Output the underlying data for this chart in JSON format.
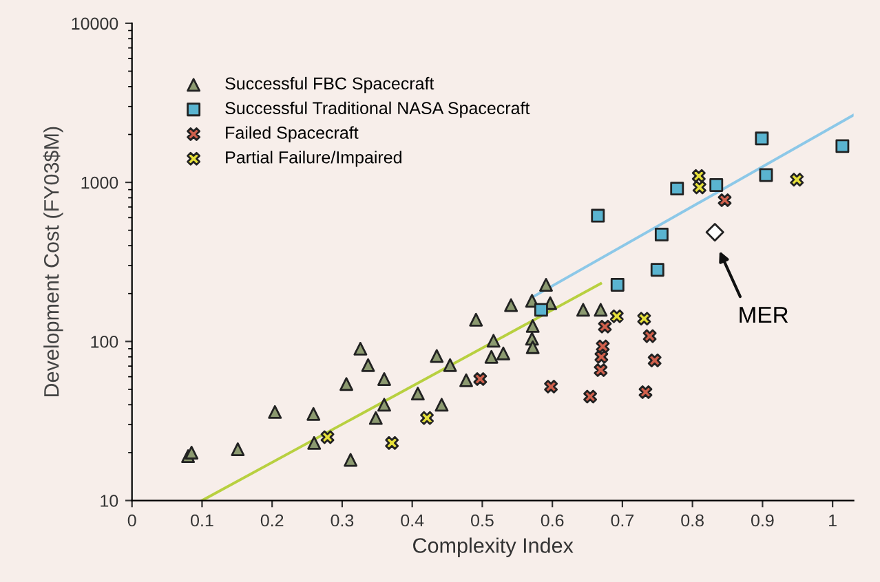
{
  "chart_data": {
    "type": "scatter",
    "xlabel": "Complexity Index",
    "ylabel": "Development Cost (FY03$M)",
    "log": "y",
    "xlim": [
      0,
      1.03
    ],
    "ylim": [
      10,
      10000
    ],
    "xticks": [
      0,
      0.1,
      0.2,
      0.3,
      0.4,
      0.5,
      0.6,
      0.7,
      0.8,
      0.9,
      1
    ],
    "yticks": [
      10,
      100,
      1000,
      10000
    ],
    "grid": false,
    "legend": "top left",
    "series": [
      {
        "name": "Successful FBC Spacecraft",
        "color": "#8c9a70",
        "marker": "triangle",
        "x": [
          0.08,
          0.085,
          0.151,
          0.204,
          0.259,
          0.26,
          0.312,
          0.306,
          0.326,
          0.337,
          0.36,
          0.36,
          0.348,
          0.408,
          0.442,
          0.435,
          0.454,
          0.477,
          0.491,
          0.513,
          0.53,
          0.516,
          0.541,
          0.571,
          0.597,
          0.591,
          0.572,
          0.571,
          0.572,
          0.644,
          0.669
        ],
        "values": [
          19,
          20,
          21,
          36,
          35,
          23,
          18,
          54,
          90,
          71,
          58,
          40,
          33,
          47,
          40,
          81,
          71,
          57,
          137,
          80,
          84,
          101,
          169,
          180,
          174,
          227,
          125,
          104,
          92,
          158,
          158
        ]
      },
      {
        "name": "Successful Traditional NASA Spacecraft",
        "color": "#5ab4d0",
        "marker": "square",
        "x": [
          0.584,
          0.693,
          0.75,
          0.756,
          0.665,
          0.778,
          0.834,
          0.905,
          0.899,
          1.014
        ],
        "values": [
          158,
          227,
          282,
          470,
          617,
          914,
          962,
          1111,
          1887,
          1690
        ]
      },
      {
        "name": "Failed Spacecraft",
        "color": "#d0604c",
        "marker": "cross",
        "x": [
          0.846,
          0.675,
          0.672,
          0.67,
          0.669,
          0.739,
          0.746,
          0.733,
          0.654,
          0.598,
          0.497
        ],
        "values": [
          773,
          124,
          93,
          80,
          66,
          108,
          76,
          48,
          45,
          52,
          58
        ]
      },
      {
        "name": "Partial Failure/Impaired",
        "color": "#e6e03a",
        "marker": "cross",
        "x": [
          0.809,
          0.81,
          0.949,
          0.692,
          0.731,
          0.279,
          0.371,
          0.421
        ],
        "values": [
          1098,
          930,
          1040,
          144,
          139,
          25,
          23,
          33
        ]
      },
      {
        "color": "#ffffff",
        "marker": "diamond",
        "x": [
          0.832
        ],
        "values": [
          486
        ]
      },
      {
        "type": "line",
        "color": "#b8d040",
        "x": [
          0.1,
          0.669
        ],
        "values": [
          10,
          231
        ]
      },
      {
        "type": "line",
        "color": "#8cc8e8",
        "x": [
          0.57,
          1.03
        ],
        "values": [
          188,
          2650
        ]
      }
    ],
    "annotations": [
      "MER"
    ]
  }
}
